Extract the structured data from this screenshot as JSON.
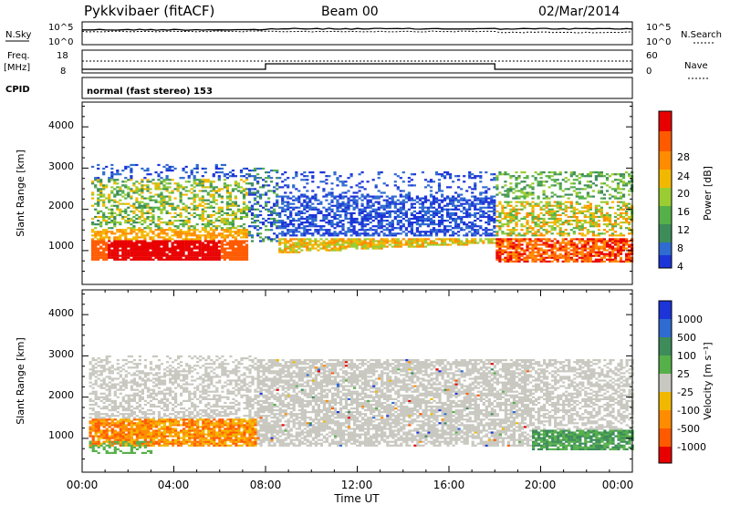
{
  "header": {
    "radar": "Pykkvibaer (fitACF)",
    "beam": "Beam 00",
    "date": "02/Mar/2014"
  },
  "noise_panel": {
    "left_label": "N.Sky",
    "left_ticks": [
      "10^5",
      "10^0"
    ],
    "right_label": "N.Search",
    "right_ticks": [
      "10^5",
      "10^0"
    ]
  },
  "freq_panel": {
    "left_label_1": "Freq.",
    "left_label_2": "[MHz]",
    "left_ticks": [
      "18",
      "8"
    ],
    "right_label": "Nave",
    "right_ticks": [
      "60",
      "0"
    ]
  },
  "cpid_panel": {
    "label": "CPID",
    "text": "normal (fast stereo) 153"
  },
  "colors": {
    "power_scale": [
      "#1c34d8",
      "#2f6bd0",
      "#3d8c5a",
      "#56b04a",
      "#9acd32",
      "#f2b800",
      "#ff8c00",
      "#ff5a00",
      "#e80000"
    ],
    "velocity_scale": [
      "#1c34d8",
      "#2f6bd0",
      "#3d8c5a",
      "#56b04a",
      "#c8c8c0",
      "#f2b800",
      "#ff8c00",
      "#ff5a00",
      "#e80000"
    ],
    "ground_scatter": "#c8c8c0"
  },
  "chart_data": [
    {
      "type": "heatmap",
      "name": "power",
      "xlabel": "",
      "ylabel": "Slant Range [km]",
      "xlim": [
        "00:00",
        "24:00"
      ],
      "ylim": [
        180,
        4600
      ],
      "yticks": [
        "1000",
        "2000",
        "3000",
        "4000"
      ],
      "colorbar": {
        "label": "Power [dB]",
        "ticks": [
          "28",
          "24",
          "20",
          "16",
          "12",
          "8",
          "4"
        ]
      },
      "echo_regions": [
        {
          "t": [
            0.5,
            7.0
          ],
          "range": [
            800,
            1200
          ],
          "level": "high"
        },
        {
          "t": [
            0.5,
            7.5
          ],
          "range": [
            1400,
            2600
          ],
          "level": "medium"
        },
        {
          "t": [
            8.0,
            18.0
          ],
          "range": [
            900,
            2800
          ],
          "level": "low"
        },
        {
          "t": [
            18.0,
            24.0
          ],
          "range": [
            700,
            2900
          ],
          "level": "medium"
        }
      ]
    },
    {
      "type": "heatmap",
      "name": "velocity",
      "xlabel": "Time UT",
      "ylabel": "Slant Range [km]",
      "xlim": [
        "00:00",
        "24:00"
      ],
      "ylim": [
        180,
        4600
      ],
      "yticks": [
        "1000",
        "2000",
        "3000",
        "4000"
      ],
      "xticks": [
        "00:00",
        "04:00",
        "08:00",
        "12:00",
        "16:00",
        "20:00",
        "00:00"
      ],
      "colorbar": {
        "label": "Velocity [m s⁻¹]",
        "ticks": [
          "1000",
          "500",
          "100",
          "25",
          "-25",
          "-100",
          "-500",
          "-1000"
        ]
      },
      "echo_regions": [
        {
          "t": [
            0.5,
            7.5
          ],
          "range": [
            800,
            1500
          ],
          "level": "negative"
        },
        {
          "t": [
            0.0,
            24.0
          ],
          "range": [
            800,
            3000
          ],
          "level": "ground_scatter"
        },
        {
          "t": [
            19.5,
            24.0
          ],
          "range": [
            700,
            1200
          ],
          "level": "positive"
        }
      ]
    }
  ]
}
